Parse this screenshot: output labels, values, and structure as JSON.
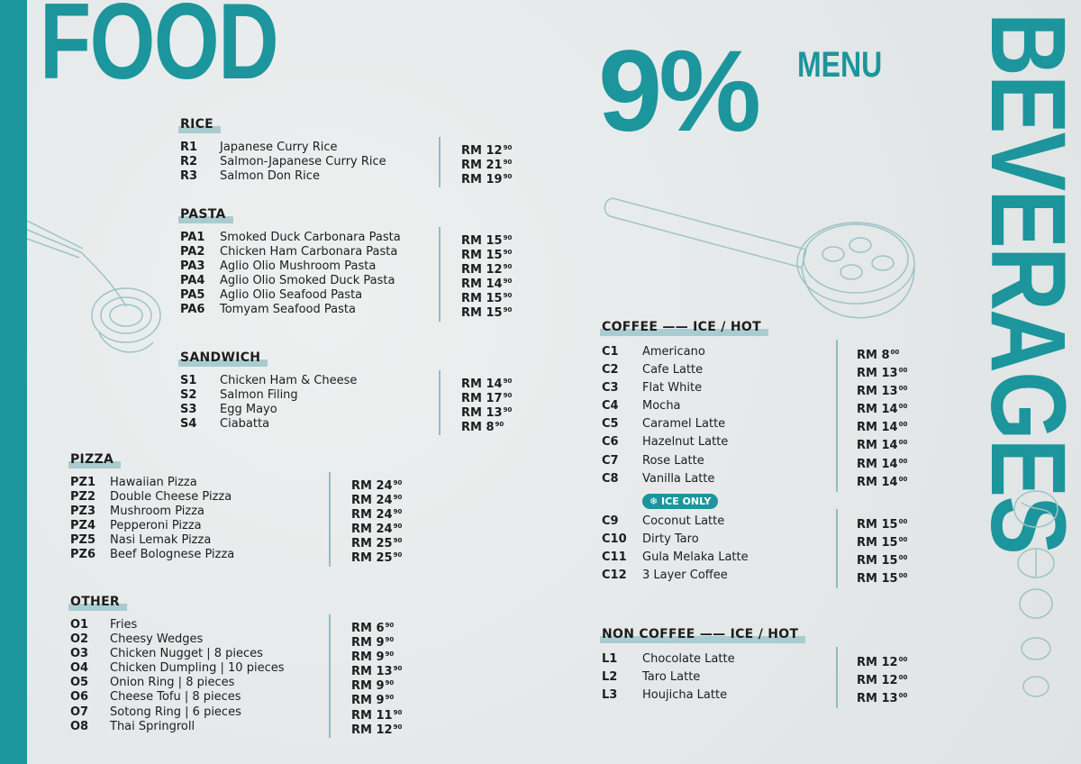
{
  "currency": "RM",
  "food_title": "FOOD",
  "promo": {
    "percent": "9%",
    "label": "MENU"
  },
  "beverages_title": "BEVERAGES",
  "colors": {
    "accent": "#1c959c",
    "highlight": "#a9ccd0",
    "background": "#e9ecec"
  },
  "food": {
    "rice": {
      "title": "RICE",
      "items": [
        {
          "code": "R1",
          "name": "Japanese Curry Rice",
          "price": "12",
          "cents": "90"
        },
        {
          "code": "R2",
          "name": "Salmon-Japanese Curry Rice",
          "price": "21",
          "cents": "90"
        },
        {
          "code": "R3",
          "name": "Salmon Don Rice",
          "price": "19",
          "cents": "90"
        }
      ]
    },
    "pasta": {
      "title": "PASTA",
      "items": [
        {
          "code": "PA1",
          "name": "Smoked Duck Carbonara Pasta",
          "price": "15",
          "cents": "90"
        },
        {
          "code": "PA2",
          "name": "Chicken Ham Carbonara Pasta",
          "price": "15",
          "cents": "90"
        },
        {
          "code": "PA3",
          "name": "Aglio Olio Mushroom Pasta",
          "price": "12",
          "cents": "90"
        },
        {
          "code": "PA4",
          "name": "Aglio Olio Smoked Duck Pasta",
          "price": "14",
          "cents": "90"
        },
        {
          "code": "PA5",
          "name": "Aglio Olio Seafood Pasta",
          "price": "15",
          "cents": "90"
        },
        {
          "code": "PA6",
          "name": "Tomyam Seafood Pasta",
          "price": "15",
          "cents": "90"
        }
      ]
    },
    "sandwich": {
      "title": "SANDWICH",
      "items": [
        {
          "code": "S1",
          "name": "Chicken Ham & Cheese",
          "price": "14",
          "cents": "90"
        },
        {
          "code": "S2",
          "name": "Salmon Filing",
          "price": "17",
          "cents": "90"
        },
        {
          "code": "S3",
          "name": "Egg Mayo",
          "price": "13",
          "cents": "90"
        },
        {
          "code": "S4",
          "name": "Ciabatta",
          "price": "8",
          "cents": "90"
        }
      ]
    },
    "pizza": {
      "title": "PIZZA",
      "items": [
        {
          "code": "PZ1",
          "name": "Hawaiian Pizza",
          "price": "24",
          "cents": "90"
        },
        {
          "code": "PZ2",
          "name": "Double Cheese Pizza",
          "price": "24",
          "cents": "90"
        },
        {
          "code": "PZ3",
          "name": "Mushroom Pizza",
          "price": "24",
          "cents": "90"
        },
        {
          "code": "PZ4",
          "name": "Pepperoni Pizza",
          "price": "24",
          "cents": "90"
        },
        {
          "code": "PZ5",
          "name": "Nasi Lemak Pizza",
          "price": "25",
          "cents": "90"
        },
        {
          "code": "PZ6",
          "name": "Beef Bolognese Pizza",
          "price": "25",
          "cents": "90"
        }
      ]
    },
    "other": {
      "title": "OTHER",
      "items": [
        {
          "code": "O1",
          "name": "Fries",
          "price": "6",
          "cents": "90"
        },
        {
          "code": "O2",
          "name": "Cheesy Wedges",
          "price": "9",
          "cents": "90"
        },
        {
          "code": "O3",
          "name": "Chicken Nugget | 8 pieces",
          "price": "9",
          "cents": "90"
        },
        {
          "code": "O4",
          "name": "Chicken Dumpling | 10 pieces",
          "price": "13",
          "cents": "90"
        },
        {
          "code": "O5",
          "name": "Onion Ring | 8 pieces",
          "price": "9",
          "cents": "90"
        },
        {
          "code": "O6",
          "name": "Cheese Tofu | 8 pieces",
          "price": "9",
          "cents": "90"
        },
        {
          "code": "O7",
          "name": "Sotong Ring | 6 pieces",
          "price": "11",
          "cents": "90"
        },
        {
          "code": "O8",
          "name": "Thai Springroll",
          "price": "12",
          "cents": "90"
        }
      ]
    }
  },
  "beverages": {
    "coffee": {
      "title": "COFFEE —— ICE / HOT",
      "badge": "❄ ICE ONLY",
      "items": [
        {
          "code": "C1",
          "name": "Americano",
          "price": "8",
          "cents": "00"
        },
        {
          "code": "C2",
          "name": "Cafe Latte",
          "price": "13",
          "cents": "00"
        },
        {
          "code": "C3",
          "name": "Flat White",
          "price": "13",
          "cents": "00"
        },
        {
          "code": "C4",
          "name": "Mocha",
          "price": "14",
          "cents": "00"
        },
        {
          "code": "C5",
          "name": "Caramel Latte",
          "price": "14",
          "cents": "00"
        },
        {
          "code": "C6",
          "name": "Hazelnut Latte",
          "price": "14",
          "cents": "00"
        },
        {
          "code": "C7",
          "name": "Rose Latte",
          "price": "14",
          "cents": "00"
        },
        {
          "code": "C8",
          "name": "Vanilla Latte",
          "price": "14",
          "cents": "00"
        }
      ],
      "ice_items": [
        {
          "code": "C9",
          "name": "Coconut Latte",
          "price": "15",
          "cents": "00"
        },
        {
          "code": "C10",
          "name": "Dirty Taro",
          "price": "15",
          "cents": "00"
        },
        {
          "code": "C11",
          "name": "Gula Melaka Latte",
          "price": "15",
          "cents": "00"
        },
        {
          "code": "C12",
          "name": "3 Layer Coffee",
          "price": "15",
          "cents": "00"
        }
      ]
    },
    "non_coffee": {
      "title": "NON COFFEE —— ICE / HOT",
      "items": [
        {
          "code": "L1",
          "name": "Chocolate Latte",
          "price": "12",
          "cents": "00"
        },
        {
          "code": "L2",
          "name": "Taro Latte",
          "price": "12",
          "cents": "00"
        },
        {
          "code": "L3",
          "name": "Houjicha Latte",
          "price": "13",
          "cents": "00"
        }
      ]
    }
  }
}
